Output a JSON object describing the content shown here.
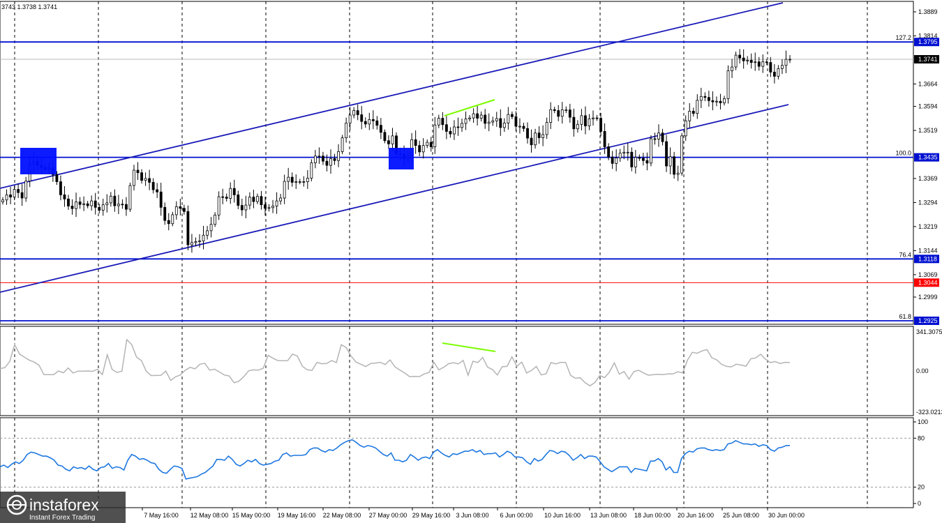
{
  "header": {
    "ohlc": "3743 1.3738 1.3741"
  },
  "watermark": {
    "brand": "instaforex",
    "tagline": "Instant Forex Trading"
  },
  "colors": {
    "level": "#0010d0",
    "channel": "#1a1ab8",
    "candle": "#000000",
    "grid": "#000000",
    "price_line": "#b8b8b8",
    "red_level": "#ff0000",
    "divergence": "#7cfc00",
    "cci": "#b4b4b4",
    "rsi": "#1e78e0",
    "box": "#0010ff"
  },
  "chart_data": [
    {
      "type": "candlestick",
      "name": "price",
      "y_ticks": [
        "1.3889",
        "1.3814",
        "1.3664",
        "1.3594",
        "1.3519",
        "1.3369",
        "1.3294",
        "1.3219",
        "1.3144",
        "1.3069",
        "1.2999"
      ],
      "x_ticks": [
        "7 May 16:00",
        "12 May 08:00",
        "15 May 00:00",
        "19 May 16:00",
        "22 May 08:00",
        "27 May 00:00",
        "29 May 16:00",
        "3 Jun 08:00",
        "6 Jun 00:00",
        "10 Jun 16:00",
        "13 Jun 08:00",
        "18 Jun 00:00",
        "20 Jun 16:00",
        "25 Jun 08:00",
        "30 Jun 00:00"
      ],
      "ylim": [
        1.2925,
        1.3925
      ],
      "levels": [
        {
          "value": 1.3795,
          "fib": "127.2",
          "tag": "1.3795"
        },
        {
          "value": 1.3435,
          "fib": "100.0",
          "tag": "1.3435"
        },
        {
          "value": 1.3118,
          "fib": "76.4",
          "tag": "1.3118"
        },
        {
          "value": 1.2925,
          "fib": "61.8",
          "tag": "1.2925"
        }
      ],
      "red_level": {
        "value": 1.3044,
        "tag": "1.3044"
      },
      "current_price": {
        "value": 1.3741,
        "tag": "1.3741"
      },
      "closes": [
        1.3302,
        1.3318,
        1.3311,
        1.3335,
        1.3325,
        1.3308,
        1.3361,
        1.3415,
        1.3422,
        1.341,
        1.3404,
        1.3398,
        1.3402,
        1.3381,
        1.3359,
        1.3318,
        1.3305,
        1.3283,
        1.3275,
        1.3296,
        1.3288,
        1.329,
        1.3284,
        1.3299,
        1.3279,
        1.327,
        1.3287,
        1.3293,
        1.3314,
        1.3284,
        1.3289,
        1.3288,
        1.3273,
        1.3347,
        1.3395,
        1.3387,
        1.3363,
        1.3369,
        1.3357,
        1.3334,
        1.3327,
        1.3279,
        1.3238,
        1.3228,
        1.3256,
        1.3281,
        1.3276,
        1.3266,
        1.3162,
        1.3169,
        1.3172,
        1.3174,
        1.3192,
        1.3206,
        1.3226,
        1.3255,
        1.3312,
        1.3311,
        1.3307,
        1.3338,
        1.3318,
        1.3285,
        1.3271,
        1.3286,
        1.3311,
        1.3297,
        1.3313,
        1.3287,
        1.3276,
        1.3278,
        1.3283,
        1.3299,
        1.3308,
        1.336,
        1.3373,
        1.3357,
        1.3359,
        1.3359,
        1.3359,
        1.337,
        1.3418,
        1.3439,
        1.3439,
        1.3423,
        1.341,
        1.3431,
        1.3425,
        1.3453,
        1.3496,
        1.3542,
        1.3567,
        1.3581,
        1.3568,
        1.3547,
        1.3539,
        1.3553,
        1.3549,
        1.3535,
        1.3513,
        1.3487,
        1.3477,
        1.3502,
        1.3446,
        1.3445,
        1.343,
        1.3441,
        1.349,
        1.3472,
        1.3452,
        1.3472,
        1.3482,
        1.3468,
        1.3536,
        1.3557,
        1.3537,
        1.3516,
        1.3508,
        1.353,
        1.3528,
        1.3541,
        1.3555,
        1.3558,
        1.3571,
        1.3557,
        1.3567,
        1.3541,
        1.3545,
        1.3549,
        1.3556,
        1.3528,
        1.3542,
        1.3569,
        1.3562,
        1.3532,
        1.3532,
        1.3525,
        1.3495,
        1.3474,
        1.3511,
        1.3496,
        1.3506,
        1.3544,
        1.3584,
        1.3581,
        1.3563,
        1.3583,
        1.3583,
        1.356,
        1.3524,
        1.3538,
        1.3565,
        1.3533,
        1.3555,
        1.3558,
        1.3557,
        1.3516,
        1.3468,
        1.3436,
        1.3416,
        1.3433,
        1.3448,
        1.3451,
        1.3451,
        1.3405,
        1.3435,
        1.3432,
        1.3425,
        1.3417,
        1.3493,
        1.3492,
        1.3511,
        1.3484,
        1.3408,
        1.3437,
        1.3382,
        1.3386,
        1.3502,
        1.3549,
        1.3579,
        1.3572,
        1.3613,
        1.3625,
        1.3622,
        1.3612,
        1.3608,
        1.361,
        1.3605,
        1.3618,
        1.3705,
        1.3717,
        1.3754,
        1.3745,
        1.3736,
        1.3738,
        1.3731,
        1.3733,
        1.3719,
        1.3733,
        1.3731,
        1.3701,
        1.3688,
        1.3712,
        1.3722,
        1.3741,
        1.3741
      ]
    },
    {
      "type": "line",
      "name": "oscillator",
      "y_ticks": [
        "341.3075",
        "0.00",
        "-323.0213"
      ],
      "ylim": [
        -323.0213,
        341.3075
      ],
      "values": [
        20,
        28,
        80,
        220,
        140,
        115,
        90,
        74,
        48,
        -30,
        -30,
        -30,
        0,
        -15,
        25,
        -17,
        -1,
        -2,
        0,
        -3,
        14,
        -30,
        135,
        12,
        -12,
        -2,
        260,
        220,
        115,
        87,
        -2,
        -38,
        -37,
        -36,
        -1,
        -78,
        -48,
        -33,
        7,
        30,
        18,
        56,
        64,
        7,
        15,
        -8,
        -33,
        -41,
        -98,
        -85,
        -47,
        2,
        9,
        7,
        23,
        130,
        105,
        86,
        85,
        86,
        140,
        124,
        40,
        10,
        5,
        72,
        60,
        62,
        86,
        70,
        218,
        195,
        124,
        74,
        56,
        37,
        62,
        66,
        72,
        54,
        92,
        34,
        8,
        -17,
        -47,
        -45,
        -47,
        -25,
        -13,
        73,
        9,
        31,
        60,
        69,
        59,
        88,
        -35,
        81,
        70,
        112,
        31,
        12,
        -33,
        35,
        38,
        118,
        38,
        74,
        -16,
        4,
        38,
        -33,
        -24,
        70,
        59,
        72,
        71,
        -35,
        -60,
        -56,
        -97,
        -123,
        -96,
        -38,
        -55,
        -8,
        68,
        -26,
        -5,
        -67,
        -5,
        6,
        -17,
        -35,
        -30,
        -27,
        -30,
        -24,
        -25,
        -7,
        -15,
        90,
        155,
        147,
        167,
        177,
        110,
        92,
        55,
        38,
        34,
        56,
        49,
        40,
        101,
        109,
        139,
        97,
        70,
        78,
        62,
        72,
        71
      ]
    },
    {
      "type": "line",
      "name": "rsi",
      "y_ticks": [
        "100",
        "80",
        "20",
        "0"
      ],
      "ylim": [
        0,
        100
      ],
      "levels": [
        80,
        20
      ],
      "values": [
        45,
        47,
        44,
        48,
        51,
        49,
        53,
        60,
        63,
        62,
        60,
        58,
        58,
        56,
        53,
        47,
        46,
        42,
        40,
        45,
        43,
        44,
        42,
        46,
        42,
        40,
        44,
        45,
        49,
        43,
        45,
        44,
        41,
        53,
        60,
        58,
        54,
        55,
        53,
        50,
        49,
        42,
        38,
        37,
        42,
        46,
        45,
        43,
        30,
        31,
        32,
        33,
        36,
        38,
        42,
        46,
        54,
        54,
        53,
        58,
        54,
        48,
        46,
        49,
        53,
        51,
        54,
        49,
        47,
        48,
        49,
        52,
        53,
        60,
        62,
        58,
        59,
        59,
        59,
        60,
        66,
        68,
        68,
        65,
        63,
        66,
        65,
        68,
        72,
        75,
        77,
        78,
        75,
        71,
        69,
        71,
        70,
        68,
        64,
        60,
        58,
        62,
        53,
        53,
        51,
        53,
        60,
        57,
        53,
        56,
        57,
        55,
        63,
        66,
        62,
        59,
        57,
        61,
        60,
        62,
        64,
        64,
        66,
        63,
        65,
        60,
        61,
        61,
        62,
        57,
        60,
        64,
        62,
        57,
        57,
        56,
        51,
        48,
        55,
        52,
        54,
        60,
        65,
        64,
        61,
        64,
        63,
        59,
        53,
        56,
        60,
        55,
        58,
        58,
        57,
        51,
        45,
        42,
        39,
        42,
        45,
        45,
        45,
        38,
        43,
        42,
        41,
        40,
        52,
        52,
        55,
        51,
        41,
        45,
        38,
        38,
        55,
        61,
        64,
        63,
        67,
        68,
        68,
        66,
        65,
        66,
        65,
        66,
        73,
        74,
        77,
        75,
        73,
        73,
        72,
        73,
        70,
        72,
        71,
        66,
        64,
        68,
        69,
        71,
        71
      ]
    }
  ]
}
